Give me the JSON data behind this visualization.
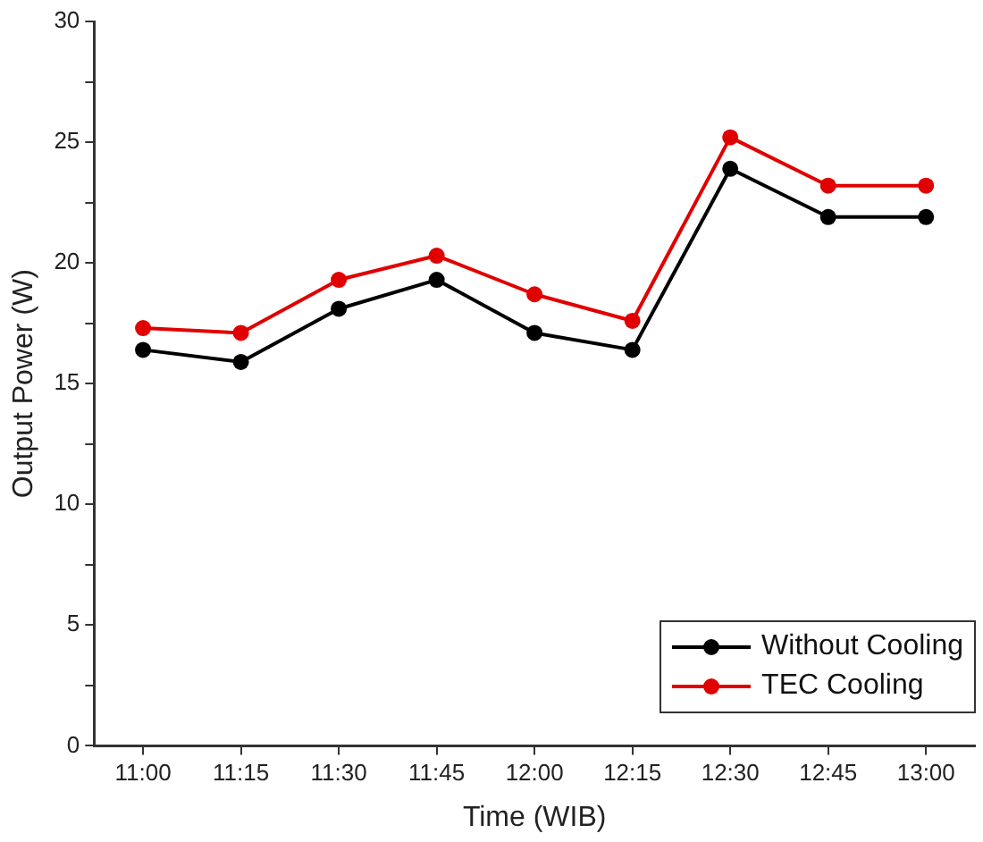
{
  "chart_data": {
    "type": "line",
    "xlabel": "Time (WIB)",
    "ylabel": "Output Power (W)",
    "categories": [
      "11:00",
      "11:15",
      "11:30",
      "11:45",
      "12:00",
      "12:15",
      "12:30",
      "12:45",
      "13:00"
    ],
    "series": [
      {
        "name": "Without Cooling",
        "color": "#000000",
        "values": [
          16.4,
          15.9,
          18.1,
          19.3,
          17.1,
          16.4,
          23.9,
          21.9,
          21.9
        ]
      },
      {
        "name": "TEC Cooling",
        "color": "#e00000",
        "values": [
          17.3,
          17.1,
          19.3,
          20.3,
          18.7,
          17.6,
          25.2,
          23.2,
          23.2
        ]
      }
    ],
    "ylim": [
      0,
      30
    ],
    "yticks": [
      0,
      {
        "value": 2.5,
        "label": null
      },
      5,
      {
        "value": 7.5,
        "label": null
      },
      10,
      {
        "value": 12.5,
        "label": null
      },
      15,
      {
        "value": 17.5,
        "label": null
      },
      20,
      {
        "value": 22.5,
        "label": null
      },
      25,
      {
        "value": 27.5,
        "label": null
      },
      30
    ],
    "grid": false,
    "legend": "bottom right",
    "marker": "circle",
    "line_style": "solid"
  }
}
